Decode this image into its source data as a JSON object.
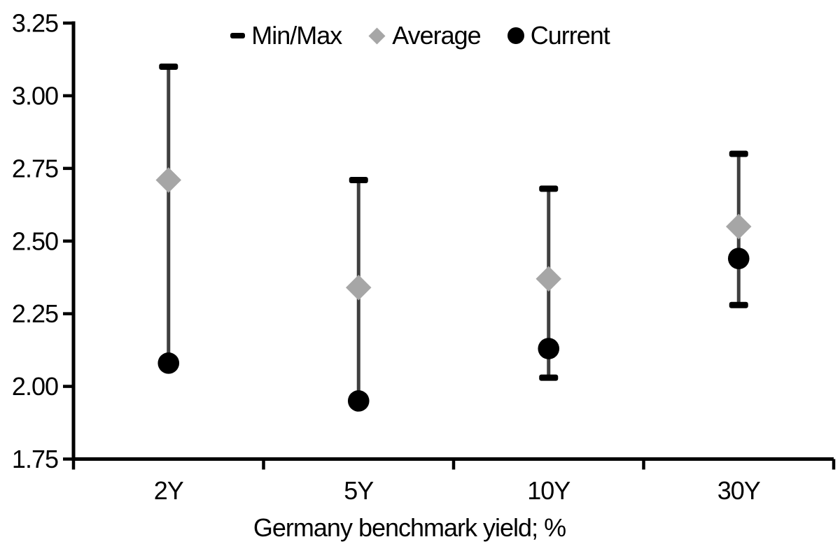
{
  "chart_data": {
    "type": "whisker-range",
    "description": "Min/Max range whiskers with Average (diamond) and Current (circle) markers",
    "categories": [
      "2Y",
      "5Y",
      "10Y",
      "30Y"
    ],
    "series": [
      {
        "name": "Min/Max",
        "role": "range",
        "marker": "cap",
        "min": [
          2.08,
          1.95,
          2.03,
          2.28
        ],
        "max": [
          3.1,
          2.71,
          2.68,
          2.8
        ]
      },
      {
        "name": "Average",
        "role": "point",
        "marker": "diamond",
        "values": [
          2.71,
          2.34,
          2.37,
          2.55
        ]
      },
      {
        "name": "Current",
        "role": "point",
        "marker": "circle",
        "values": [
          2.08,
          1.95,
          2.13,
          2.44
        ]
      }
    ],
    "title": "",
    "xlabel": "Germany benchmark yield; %",
    "ylabel": "",
    "ylim": [
      1.75,
      3.25
    ],
    "yticks": [
      3.25,
      3.0,
      2.75,
      2.5,
      2.25,
      2.0,
      1.75
    ],
    "ytick_decimals": 2,
    "grid": false,
    "legend_position": "top-center",
    "colors": {
      "axis": "#000000",
      "text": "#000000",
      "whisker_line": "#3f3f3f",
      "minmax_cap": "#000000",
      "average_diamond": "#a6a6a6",
      "current_circle": "#000000",
      "background": "#ffffff"
    }
  }
}
